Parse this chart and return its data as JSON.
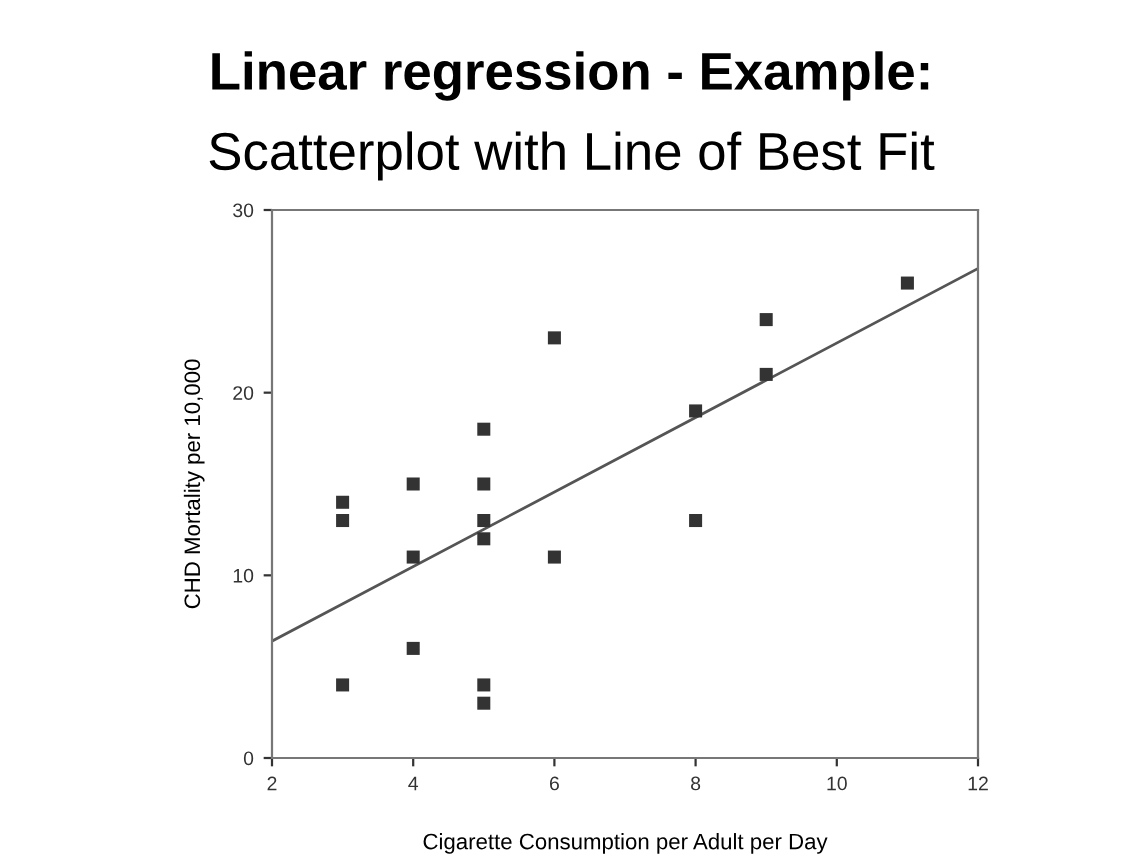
{
  "chart_data": {
    "type": "scatter",
    "title": "Linear regression - Example:",
    "subtitle": "Scatterplot with Line of Best Fit",
    "xlabel": "Cigarette Consumption per Adult per Day",
    "ylabel": "CHD Mortality per 10,000",
    "series": [
      {
        "color": "#333333",
        "marker": "square",
        "x": [
          3,
          3,
          3,
          4,
          4,
          4,
          5,
          5,
          5,
          5,
          5,
          5,
          6,
          6,
          8,
          8,
          9,
          9,
          11
        ],
        "values": [
          14,
          13,
          4,
          15,
          11,
          6,
          18,
          15,
          13,
          12,
          4,
          3,
          23,
          11,
          19,
          13,
          24,
          21,
          26
        ]
      },
      {
        "type": "line",
        "color": "#555555",
        "marker": "none",
        "x": [
          2,
          12
        ],
        "values": [
          6.4,
          26.8
        ]
      }
    ],
    "xlim": [
      2,
      12
    ],
    "ylim": [
      0,
      30
    ],
    "xticks": [
      2,
      4,
      6,
      8,
      10,
      12
    ],
    "yticks": [
      0,
      10,
      20,
      30
    ],
    "grid": false,
    "legend": false
  }
}
